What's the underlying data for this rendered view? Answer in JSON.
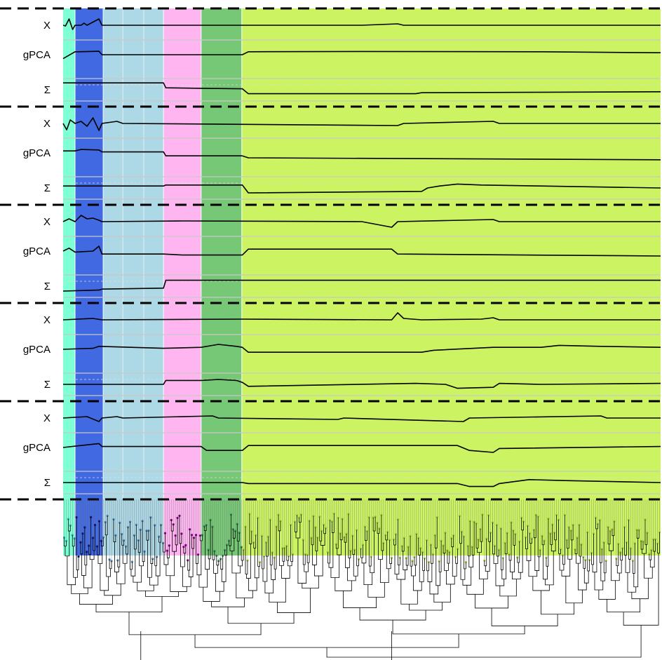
{
  "chart_data": {
    "type": "line",
    "title": "",
    "panels": 5,
    "rows_per_panel": [
      {
        "key": "x",
        "label": "X"
      },
      {
        "key": "gpca",
        "label": "gPCA"
      },
      {
        "key": "sigma",
        "label": "Σ"
      }
    ],
    "clades": [
      {
        "name": "clade-1",
        "color": "#7fffd4",
        "from": 0.0,
        "to": 0.02
      },
      {
        "name": "clade-2",
        "color": "#4169e1",
        "from": 0.02,
        "to": 0.067
      },
      {
        "name": "clade-3",
        "color": "#add8e6",
        "from": 0.067,
        "to": 0.168
      },
      {
        "name": "clade-4",
        "color": "#ffb6f0",
        "from": 0.168,
        "to": 0.231
      },
      {
        "name": "clade-5",
        "color": "#76c776",
        "from": 0.231,
        "to": 0.299
      },
      {
        "name": "clade-6",
        "color": "#ccf462",
        "from": 0.299,
        "to": 1.0
      }
    ],
    "series": [
      {
        "panel": 1,
        "x": [
          [
            0,
            0
          ],
          [
            0.004,
            -0.1
          ],
          [
            0.01,
            0.9
          ],
          [
            0.016,
            -0.6
          ],
          [
            0.02,
            0
          ],
          [
            0.03,
            0
          ],
          [
            0.035,
            0.3
          ],
          [
            0.04,
            0
          ],
          [
            0.06,
            0.9
          ],
          [
            0.065,
            0
          ],
          [
            0.2,
            0
          ],
          [
            0.5,
            0
          ],
          [
            0.56,
            0.2
          ],
          [
            0.57,
            0
          ],
          [
            1,
            0
          ]
        ],
        "gpca": [
          [
            0,
            -0.4
          ],
          [
            0.02,
            0.3
          ],
          [
            0.025,
            0.3
          ],
          [
            0.06,
            0.35
          ],
          [
            0.065,
            0
          ],
          [
            0.3,
            0
          ],
          [
            0.31,
            0.3
          ],
          [
            0.5,
            0.33
          ],
          [
            0.8,
            0.3
          ],
          [
            1,
            0.2
          ]
        ],
        "sigma": [
          [
            0,
            0.7
          ],
          [
            0.168,
            0.7
          ],
          [
            0.172,
            0.2
          ],
          [
            0.231,
            0.15
          ],
          [
            0.3,
            0.1
          ],
          [
            0.31,
            -0.4
          ],
          [
            0.59,
            -0.4
          ],
          [
            0.6,
            -0.3
          ],
          [
            1,
            -0.2
          ]
        ]
      },
      {
        "panel": 2,
        "x": [
          [
            0,
            0
          ],
          [
            0.006,
            -0.9
          ],
          [
            0.012,
            0.5
          ],
          [
            0.02,
            0
          ],
          [
            0.03,
            0.3
          ],
          [
            0.04,
            -0.4
          ],
          [
            0.05,
            0.8
          ],
          [
            0.06,
            -1.0
          ],
          [
            0.065,
            0
          ],
          [
            0.09,
            0.3
          ],
          [
            0.1,
            0
          ],
          [
            0.56,
            -0.3
          ],
          [
            0.57,
            0
          ],
          [
            0.72,
            0.3
          ],
          [
            0.73,
            0
          ],
          [
            1,
            0
          ]
        ],
        "gpca": [
          [
            0,
            0.2
          ],
          [
            0.02,
            0.2
          ],
          [
            0.03,
            0.35
          ],
          [
            0.06,
            0.3
          ],
          [
            0.065,
            0.1
          ],
          [
            0.168,
            0.1
          ],
          [
            0.172,
            -0.3
          ],
          [
            0.3,
            -0.3
          ],
          [
            0.31,
            -0.5
          ],
          [
            1,
            -0.7
          ]
        ],
        "sigma": [
          [
            0,
            0.2
          ],
          [
            0.168,
            0.2
          ],
          [
            0.172,
            0.3
          ],
          [
            0.231,
            0.3
          ],
          [
            0.3,
            0.3
          ],
          [
            0.31,
            -0.5
          ],
          [
            0.6,
            -0.35
          ],
          [
            0.61,
            0
          ],
          [
            0.63,
            0.2
          ],
          [
            0.66,
            0.4
          ],
          [
            0.7,
            0.3
          ],
          [
            0.8,
            0.2
          ],
          [
            1,
            0
          ]
        ]
      },
      {
        "panel": 3,
        "x": [
          [
            0,
            0
          ],
          [
            0.01,
            0.4
          ],
          [
            0.02,
            0
          ],
          [
            0.03,
            0.9
          ],
          [
            0.04,
            0.4
          ],
          [
            0.05,
            0.5
          ],
          [
            0.06,
            0.2
          ],
          [
            0.065,
            0
          ],
          [
            0.2,
            0.1
          ],
          [
            0.5,
            0
          ],
          [
            0.55,
            -0.8
          ],
          [
            0.56,
            0
          ],
          [
            0.72,
            0.3
          ],
          [
            0.73,
            0
          ],
          [
            1,
            0
          ]
        ],
        "gpca": [
          [
            0,
            0
          ],
          [
            0.01,
            0.3
          ],
          [
            0.02,
            -0.1
          ],
          [
            0.05,
            0
          ],
          [
            0.06,
            0.5
          ],
          [
            0.065,
            -0.3
          ],
          [
            0.168,
            -0.3
          ],
          [
            0.2,
            -0.4
          ],
          [
            0.3,
            -0.4
          ],
          [
            0.31,
            0.2
          ],
          [
            0.55,
            0.2
          ],
          [
            0.56,
            -0.3
          ],
          [
            1,
            -0.5
          ]
        ],
        "sigma": [
          [
            0,
            -0.5
          ],
          [
            0.06,
            -0.4
          ],
          [
            0.065,
            -0.3
          ],
          [
            0.168,
            -0.2
          ],
          [
            0.172,
            0.6
          ],
          [
            1,
            0.6
          ]
        ]
      },
      {
        "panel": 4,
        "x": [
          [
            0,
            0
          ],
          [
            0.05,
            0.2
          ],
          [
            0.065,
            0
          ],
          [
            0.3,
            0.1
          ],
          [
            0.55,
            0
          ],
          [
            0.56,
            1.0
          ],
          [
            0.57,
            0.2
          ],
          [
            0.6,
            0
          ],
          [
            0.7,
            0.1
          ],
          [
            0.72,
            0.3
          ],
          [
            0.73,
            0
          ],
          [
            1,
            0
          ]
        ],
        "gpca": [
          [
            0,
            0
          ],
          [
            0.05,
            0.1
          ],
          [
            0.06,
            0.3
          ],
          [
            0.168,
            0.1
          ],
          [
            0.231,
            0.2
          ],
          [
            0.26,
            0.5
          ],
          [
            0.29,
            0.3
          ],
          [
            0.3,
            0.2
          ],
          [
            0.31,
            -0.3
          ],
          [
            0.6,
            -0.3
          ],
          [
            0.62,
            -0.1
          ],
          [
            0.72,
            0.2
          ],
          [
            0.8,
            0.2
          ],
          [
            0.83,
            0.4
          ],
          [
            0.9,
            0.3
          ],
          [
            1,
            0.2
          ]
        ],
        "sigma": [
          [
            0,
            0
          ],
          [
            0.168,
            0
          ],
          [
            0.172,
            0.4
          ],
          [
            0.231,
            0.4
          ],
          [
            0.26,
            0.5
          ],
          [
            0.29,
            0.4
          ],
          [
            0.3,
            0.2
          ],
          [
            0.31,
            -0.2
          ],
          [
            0.59,
            0.1
          ],
          [
            0.64,
            0.0
          ],
          [
            0.66,
            -0.4
          ],
          [
            0.72,
            -0.3
          ],
          [
            0.73,
            0.1
          ],
          [
            0.8,
            0.0
          ],
          [
            1,
            0.1
          ]
        ]
      },
      {
        "panel": 5,
        "x": [
          [
            0,
            0
          ],
          [
            0.04,
            0.2
          ],
          [
            0.06,
            -0.5
          ],
          [
            0.065,
            0
          ],
          [
            0.09,
            0.2
          ],
          [
            0.1,
            0
          ],
          [
            0.25,
            0.3
          ],
          [
            0.26,
            0
          ],
          [
            0.46,
            -0.2
          ],
          [
            0.47,
            0
          ],
          [
            0.67,
            -0.5
          ],
          [
            0.68,
            0
          ],
          [
            0.9,
            0.3
          ],
          [
            0.91,
            0
          ],
          [
            1,
            0
          ]
        ],
        "gpca": [
          [
            0,
            0
          ],
          [
            0.06,
            0.4
          ],
          [
            0.065,
            0.1
          ],
          [
            0.231,
            0.1
          ],
          [
            0.24,
            -0.3
          ],
          [
            0.3,
            -0.3
          ],
          [
            0.31,
            0.2
          ],
          [
            0.66,
            0.2
          ],
          [
            0.68,
            -0.3
          ],
          [
            0.72,
            -0.5
          ],
          [
            0.73,
            -0.1
          ],
          [
            1,
            0.1
          ]
        ],
        "sigma": [
          [
            0,
            0
          ],
          [
            0.3,
            0
          ],
          [
            0.31,
            -0.1
          ],
          [
            0.66,
            -0.1
          ],
          [
            0.68,
            -0.4
          ],
          [
            0.72,
            -0.4
          ],
          [
            0.73,
            -0.1
          ],
          [
            0.78,
            0.3
          ],
          [
            0.84,
            0.2
          ],
          [
            1,
            0
          ]
        ]
      }
    ],
    "tree": {
      "tips": 290
    }
  }
}
